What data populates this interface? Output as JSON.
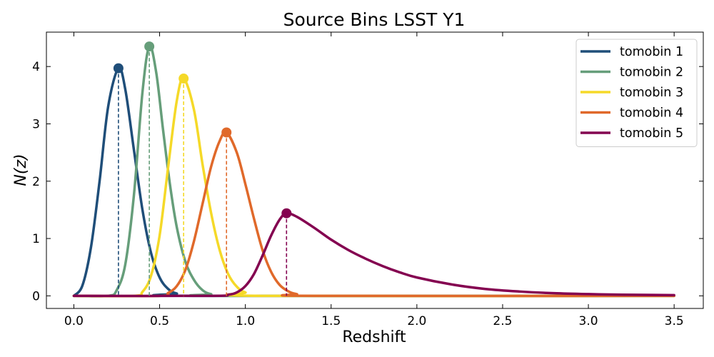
{
  "chart_data": {
    "type": "line",
    "title": "Source Bins LSST Y1",
    "xlabel": "Redshift",
    "ylabel": "N(z)",
    "xlim": [
      -0.16,
      3.67
    ],
    "ylim": [
      -0.22,
      4.6
    ],
    "x_ticks": [
      0.0,
      0.5,
      1.0,
      1.5,
      2.0,
      2.5,
      3.0,
      3.5
    ],
    "x_tick_labels": [
      "0.0",
      "0.5",
      "1.0",
      "1.5",
      "2.0",
      "2.5",
      "3.0",
      "3.5"
    ],
    "y_ticks": [
      0,
      1,
      2,
      3,
      4
    ],
    "y_tick_labels": [
      "0",
      "1",
      "2",
      "3",
      "4"
    ],
    "grid": false,
    "legend_position": "top-right",
    "x_range": [
      0.0,
      3.5
    ],
    "series": [
      {
        "name": "tomobin 1",
        "color": "#1f4e79",
        "peak_x": 0.26,
        "peak_y": 3.97,
        "points": [
          [
            0.0,
            0.0
          ],
          [
            0.05,
            0.18
          ],
          [
            0.1,
            0.85
          ],
          [
            0.15,
            2.0
          ],
          [
            0.2,
            3.3
          ],
          [
            0.26,
            3.97
          ],
          [
            0.3,
            3.6
          ],
          [
            0.35,
            2.55
          ],
          [
            0.4,
            1.5
          ],
          [
            0.45,
            0.75
          ],
          [
            0.5,
            0.32
          ],
          [
            0.55,
            0.12
          ],
          [
            0.6,
            0.04
          ],
          [
            0.7,
            0.0
          ],
          [
            3.5,
            0.0
          ]
        ]
      },
      {
        "name": "tomobin 2",
        "color": "#669e7a",
        "peak_x": 0.44,
        "peak_y": 4.35,
        "points": [
          [
            0.0,
            0.0
          ],
          [
            0.2,
            0.0
          ],
          [
            0.25,
            0.1
          ],
          [
            0.3,
            0.55
          ],
          [
            0.35,
            1.75
          ],
          [
            0.4,
            3.55
          ],
          [
            0.44,
            4.35
          ],
          [
            0.48,
            3.9
          ],
          [
            0.52,
            2.9
          ],
          [
            0.56,
            1.95
          ],
          [
            0.6,
            1.2
          ],
          [
            0.65,
            0.6
          ],
          [
            0.7,
            0.28
          ],
          [
            0.75,
            0.1
          ],
          [
            0.8,
            0.03
          ],
          [
            0.9,
            0.0
          ],
          [
            3.5,
            0.0
          ]
        ]
      },
      {
        "name": "tomobin 3",
        "color": "#f5d928",
        "peak_x": 0.64,
        "peak_y": 3.79,
        "points": [
          [
            0.0,
            0.0
          ],
          [
            0.35,
            0.0
          ],
          [
            0.4,
            0.07
          ],
          [
            0.45,
            0.35
          ],
          [
            0.5,
            1.05
          ],
          [
            0.55,
            2.25
          ],
          [
            0.6,
            3.4
          ],
          [
            0.64,
            3.79
          ],
          [
            0.7,
            3.25
          ],
          [
            0.75,
            2.3
          ],
          [
            0.8,
            1.45
          ],
          [
            0.85,
            0.8
          ],
          [
            0.9,
            0.38
          ],
          [
            0.95,
            0.16
          ],
          [
            1.0,
            0.06
          ],
          [
            1.1,
            0.0
          ],
          [
            3.5,
            0.0
          ]
        ]
      },
      {
        "name": "tomobin 4",
        "color": "#e0692a",
        "peak_x": 0.89,
        "peak_y": 2.85,
        "points": [
          [
            0.0,
            0.0
          ],
          [
            0.5,
            0.0
          ],
          [
            0.55,
            0.05
          ],
          [
            0.6,
            0.17
          ],
          [
            0.65,
            0.45
          ],
          [
            0.7,
            0.95
          ],
          [
            0.75,
            1.6
          ],
          [
            0.8,
            2.25
          ],
          [
            0.85,
            2.7
          ],
          [
            0.89,
            2.85
          ],
          [
            0.95,
            2.5
          ],
          [
            1.0,
            1.95
          ],
          [
            1.05,
            1.35
          ],
          [
            1.1,
            0.8
          ],
          [
            1.15,
            0.42
          ],
          [
            1.2,
            0.19
          ],
          [
            1.25,
            0.08
          ],
          [
            1.3,
            0.03
          ],
          [
            1.4,
            0.0
          ],
          [
            3.5,
            0.0
          ]
        ]
      },
      {
        "name": "tomobin 5",
        "color": "#840050",
        "peak_x": 1.24,
        "peak_y": 1.44,
        "points": [
          [
            0.0,
            0.0
          ],
          [
            0.8,
            0.0
          ],
          [
            0.9,
            0.02
          ],
          [
            0.95,
            0.06
          ],
          [
            1.0,
            0.17
          ],
          [
            1.05,
            0.38
          ],
          [
            1.1,
            0.7
          ],
          [
            1.15,
            1.05
          ],
          [
            1.2,
            1.33
          ],
          [
            1.24,
            1.44
          ],
          [
            1.3,
            1.38
          ],
          [
            1.4,
            1.19
          ],
          [
            1.5,
            0.98
          ],
          [
            1.6,
            0.8
          ],
          [
            1.7,
            0.65
          ],
          [
            1.8,
            0.52
          ],
          [
            1.9,
            0.41
          ],
          [
            2.0,
            0.32
          ],
          [
            2.2,
            0.2
          ],
          [
            2.4,
            0.12
          ],
          [
            2.6,
            0.075
          ],
          [
            2.8,
            0.046
          ],
          [
            3.0,
            0.03
          ],
          [
            3.2,
            0.02
          ],
          [
            3.5,
            0.012
          ]
        ]
      }
    ]
  }
}
